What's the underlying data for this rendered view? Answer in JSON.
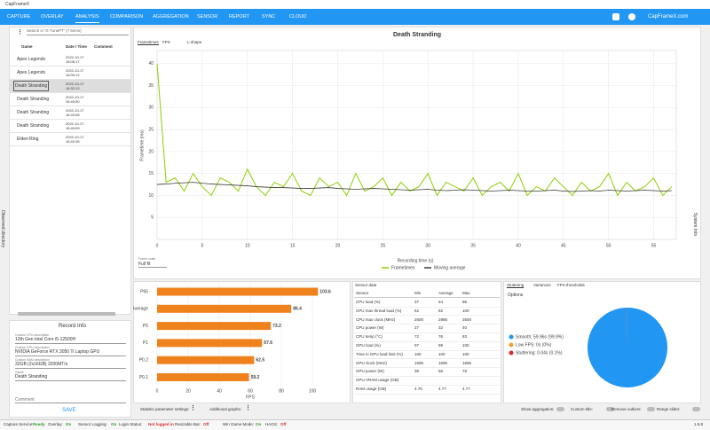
{
  "window": {
    "title": "CapFrameX"
  },
  "nav": {
    "tabs": [
      "CAPTURE",
      "OVERLAY",
      "ANALYSIS",
      "COMPARISON",
      "AGGREGATION",
      "SENSOR",
      "REPORT",
      "SYNC",
      "CLOUD"
    ],
    "active": 2,
    "link": "CapFrameX.com"
  },
  "sidebar": {
    "side_label": "Observed directory",
    "search": "Search in 'G-TunePT' (7 items)",
    "columns": [
      "Game",
      "Date / Time",
      "Comment"
    ],
    "records": [
      {
        "game": "Apex Legends",
        "date": "2022-10-17",
        "time": "16:06:17"
      },
      {
        "game": "Apex Legends",
        "date": "2022-10-17",
        "time": "16:09:12"
      },
      {
        "game": "Death Stranding",
        "date": "2022-10-17",
        "time": "16:32:12"
      },
      {
        "game": "Death Stranding",
        "date": "2022-10-17",
        "time": "16:49:50"
      },
      {
        "game": "Death Stranding",
        "date": "2022-10-17",
        "time": "16:49:55"
      },
      {
        "game": "Death Stranding",
        "date": "2022-10-17",
        "time": "16:49:59"
      },
      {
        "game": "Elden Ring",
        "date": "2022-10-17",
        "time": "16:40:35"
      }
    ],
    "selected": 2
  },
  "record_info": {
    "title": "Record Info",
    "fields": [
      {
        "label": "Custom CPU description",
        "value": "12th Gen Intel Core i5-12500H"
      },
      {
        "label": "Custom GPU description",
        "value": "NVIDIA GeForce RTX 3050 Ti Laptop GPU"
      },
      {
        "label": "Custom RAM description",
        "value": "32GB (2x16GB) 3200MT/s"
      },
      {
        "label": "Game",
        "value": "Death Stranding"
      }
    ],
    "comment_label": "Comment",
    "save": "SAVE"
  },
  "right_label": "System Info",
  "frametimes": {
    "tabs": [
      "Frametimes",
      "FPS",
      "L-shape"
    ],
    "title": "Death Stranding",
    "type": "line",
    "x_label": "Recording time (s)",
    "y_label": "Frametime (ms)",
    "x": [
      0,
      1,
      2,
      3,
      4,
      5,
      6,
      7,
      8,
      9,
      10,
      11,
      12,
      13,
      14,
      15,
      16,
      17,
      18,
      19,
      20,
      21,
      22,
      23,
      24,
      25,
      26,
      27,
      28,
      29,
      30,
      31,
      32,
      33,
      34,
      35,
      36,
      37,
      38,
      39,
      40,
      41,
      42,
      43,
      44,
      45,
      46,
      47,
      48,
      49,
      50,
      51,
      52,
      53,
      54,
      55,
      56,
      57
    ],
    "series": [
      {
        "name": "Frametimes",
        "color": "#8ccf00",
        "values": [
          40,
          13,
          14,
          11,
          15,
          12,
          10,
          14,
          13,
          11,
          16,
          12,
          10,
          13,
          12,
          15,
          11,
          10,
          14,
          12,
          13,
          10,
          15,
          11,
          12,
          14,
          10,
          13,
          11,
          12,
          15,
          10,
          13,
          12,
          11,
          14,
          10,
          12,
          13,
          11,
          15,
          10,
          12,
          11,
          14,
          12,
          10,
          13,
          11,
          12,
          15,
          10,
          13,
          11,
          12,
          14,
          10,
          12
        ]
      },
      {
        "name": "Moving average",
        "color": "#3a3a3a",
        "values": [
          12.5,
          12.6,
          12.8,
          12.9,
          13,
          12.8,
          12.6,
          12.5,
          12.4,
          12.3,
          12.2,
          12,
          11.9,
          11.8,
          11.8,
          11.7,
          11.6,
          11.6,
          11.7,
          11.8,
          11.6,
          11.5,
          11.4,
          11.5,
          11.6,
          11.5,
          11.4,
          11.3,
          11.2,
          11.3,
          11.4,
          11.2,
          11.1,
          11.2,
          11.3,
          11.2,
          11.1,
          11,
          11.1,
          11.2,
          11.1,
          11,
          11,
          11.1,
          11.2,
          11,
          10.9,
          11,
          11.1,
          11,
          11.2,
          11.1,
          11,
          11.1,
          11.2,
          11.1,
          11,
          11.1
        ]
      }
    ],
    "xlim": [
      0,
      57.5
    ],
    "ylim": [
      0,
      43
    ],
    "xticks": [
      0,
      5,
      10,
      15,
      20,
      25,
      30,
      35,
      40,
      45,
      50,
      55
    ],
    "yticks": [
      5,
      10,
      15,
      20,
      25,
      30,
      35,
      40
    ],
    "grid": true,
    "scale_label": "Frame scale",
    "scale_value": "Full fit"
  },
  "stats": {
    "type": "bar",
    "categories": [
      "P95",
      "Average",
      "P5",
      "P1",
      "P0.2",
      "P0.1"
    ],
    "values": [
      103.6,
      86.4,
      73.2,
      67.6,
      62.5,
      59.2
    ],
    "color": "#f0821e",
    "xlim": [
      0,
      120
    ],
    "xticks": [
      0,
      20,
      40,
      60,
      80,
      100
    ],
    "x_label": "FPS"
  },
  "sensor": {
    "title": "Sensor data",
    "columns": [
      "Sensor",
      "Min",
      "Average",
      "Max"
    ],
    "rows": [
      [
        "CPU load (%)",
        "37",
        "64",
        "86"
      ],
      [
        "CPU max thread load (%)",
        "62",
        "82",
        "100"
      ],
      [
        "CPU max clock (MHz)",
        "2600",
        "2986",
        "3500"
      ],
      [
        "CPU power (W)",
        "27",
        "32",
        "40"
      ],
      [
        "CPU temp (°C)",
        "72",
        "76",
        "83"
      ],
      [
        "GPU load (%)",
        "97",
        "99",
        "100"
      ],
      [
        "Time in GPU load limit (%)",
        "100",
        "100",
        "100"
      ],
      [
        "GPU clock (MHz)",
        "1695",
        "1695",
        "1695"
      ],
      [
        "GPU power (W)",
        "38",
        "56",
        "78"
      ],
      [
        "GPU VRAM usage (GB)"
      ],
      [
        "RAM usage (GB)",
        "4.76",
        "4.77",
        "4.77"
      ]
    ]
  },
  "stuttering": {
    "tabs": [
      "Stuttering",
      "Variances",
      "FPS thresholds"
    ],
    "options": "Options",
    "type": "pie",
    "categories": [
      "Smooth",
      "Low FPS",
      "Stuttering"
    ],
    "values": [
      99.9,
      0,
      0.1
    ],
    "value_labels": [
      "Smooth: 59.96s (99.9%)",
      "Low FPS: 0s (0%)",
      "Stuttering: 0.04s (0.1%)"
    ],
    "colors": [
      "#2196f3",
      "#f0a030",
      "#d32f2f"
    ]
  },
  "controls": [
    "Statistic parameter settings:",
    "Additional graphs:",
    "Show aggregation:",
    "Custom title:",
    "Remove outliers:",
    "Range slider:"
  ],
  "status": [
    {
      "label": "Capture Service:",
      "value": "Ready",
      "color": "#2e9e2e"
    },
    {
      "label": "Overlay:",
      "value": "On",
      "color": "#2e9e2e"
    },
    {
      "label": "Sensor Logging:",
      "value": "On",
      "color": "#2e9e2e"
    },
    {
      "label": "Login Status:",
      "value": "Not logged in",
      "color": "#d32f2f"
    },
    {
      "label": "Resizable Bar:",
      "value": "Off",
      "color": "#d32f2f"
    },
    {
      "label": "Win Game Mode:",
      "value": "On",
      "color": "#2e9e2e"
    },
    {
      "label": "HAGS:",
      "value": "Off",
      "color": "#d32f2f"
    }
  ],
  "version": "1.6.8"
}
